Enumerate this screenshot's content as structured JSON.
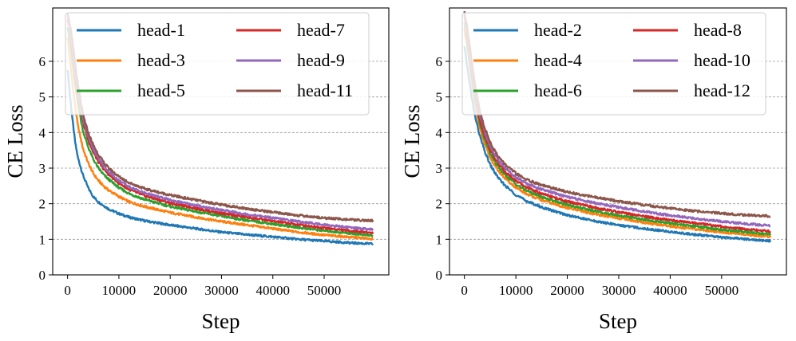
{
  "chart_data": [
    {
      "type": "line",
      "xlabel": "Step",
      "ylabel": "CE Loss",
      "xlim": [
        -2900,
        62600
      ],
      "ylim": [
        0,
        7.5
      ],
      "xticks": [
        0,
        10000,
        20000,
        30000,
        40000,
        50000
      ],
      "yticks": [
        0,
        1,
        2,
        3,
        4,
        5,
        6
      ],
      "grid": "horizontal dashed",
      "legend": "top, 2 columns",
      "x": [
        0,
        500,
        1000,
        1500,
        2000,
        3000,
        4000,
        5000,
        6000,
        7000,
        8000,
        10000,
        12000,
        15000,
        20000,
        25000,
        30000,
        35000,
        40000,
        45000,
        50000,
        55000,
        59500
      ],
      "series": [
        {
          "name": "head-1",
          "color": "#1f77b4",
          "values": [
            5.8,
            5.0,
            4.3,
            3.7,
            3.3,
            2.8,
            2.45,
            2.2,
            2.05,
            1.95,
            1.85,
            1.72,
            1.62,
            1.52,
            1.4,
            1.3,
            1.2,
            1.13,
            1.07,
            1.0,
            0.95,
            0.9,
            0.87
          ]
        },
        {
          "name": "head-3",
          "color": "#ff7f0e",
          "values": [
            6.7,
            6.0,
            5.3,
            4.7,
            4.2,
            3.55,
            3.15,
            2.85,
            2.65,
            2.5,
            2.38,
            2.2,
            2.05,
            1.92,
            1.75,
            1.62,
            1.5,
            1.4,
            1.3,
            1.2,
            1.12,
            1.06,
            1.01
          ]
        },
        {
          "name": "head-5",
          "color": "#2ca02c",
          "values": [
            7.0,
            6.5,
            5.9,
            5.3,
            4.8,
            4.05,
            3.6,
            3.25,
            3.0,
            2.82,
            2.68,
            2.45,
            2.28,
            2.12,
            1.92,
            1.78,
            1.65,
            1.53,
            1.43,
            1.33,
            1.24,
            1.17,
            1.1
          ]
        },
        {
          "name": "head-7",
          "color": "#d62728",
          "values": [
            7.2,
            6.8,
            6.2,
            5.6,
            5.1,
            4.3,
            3.8,
            3.45,
            3.18,
            2.98,
            2.82,
            2.58,
            2.4,
            2.22,
            2.02,
            1.87,
            1.73,
            1.62,
            1.51,
            1.41,
            1.32,
            1.24,
            1.18
          ]
        },
        {
          "name": "head-9",
          "color": "#9467bd",
          "values": [
            7.3,
            6.9,
            6.35,
            5.75,
            5.2,
            4.4,
            3.9,
            3.55,
            3.28,
            3.07,
            2.9,
            2.65,
            2.47,
            2.3,
            2.1,
            1.95,
            1.82,
            1.7,
            1.6,
            1.5,
            1.41,
            1.33,
            1.27
          ]
        },
        {
          "name": "head-11",
          "color": "#8c564b",
          "values": [
            7.4,
            7.0,
            6.5,
            5.9,
            5.35,
            4.5,
            4.0,
            3.65,
            3.38,
            3.17,
            3.0,
            2.76,
            2.59,
            2.42,
            2.24,
            2.1,
            1.97,
            1.86,
            1.76,
            1.67,
            1.6,
            1.55,
            1.52
          ]
        }
      ]
    },
    {
      "type": "line",
      "xlabel": "Step",
      "ylabel": "CE Loss",
      "xlim": [
        -2900,
        62600
      ],
      "ylim": [
        0,
        7.5
      ],
      "xticks": [
        0,
        10000,
        20000,
        30000,
        40000,
        50000
      ],
      "yticks": [
        0,
        1,
        2,
        3,
        4,
        5,
        6
      ],
      "grid": "horizontal dashed",
      "legend": "top, 2 columns",
      "x": [
        0,
        500,
        1000,
        1500,
        2000,
        3000,
        4000,
        5000,
        6000,
        7000,
        8000,
        10000,
        12000,
        15000,
        20000,
        25000,
        30000,
        35000,
        40000,
        45000,
        50000,
        55000,
        59500
      ],
      "series": [
        {
          "name": "head-2",
          "color": "#1f77b4",
          "values": [
            6.4,
            5.9,
            5.4,
            4.9,
            4.5,
            3.9,
            3.45,
            3.1,
            2.85,
            2.65,
            2.5,
            2.25,
            2.08,
            1.9,
            1.68,
            1.52,
            1.4,
            1.3,
            1.21,
            1.13,
            1.06,
            1.0,
            0.95
          ]
        },
        {
          "name": "head-4",
          "color": "#ff7f0e",
          "values": [
            6.9,
            6.4,
            5.9,
            5.3,
            4.85,
            4.1,
            3.65,
            3.3,
            3.05,
            2.85,
            2.7,
            2.45,
            2.28,
            2.1,
            1.88,
            1.72,
            1.59,
            1.47,
            1.37,
            1.28,
            1.2,
            1.13,
            1.07
          ]
        },
        {
          "name": "head-6",
          "color": "#2ca02c",
          "values": [
            7.1,
            6.6,
            6.05,
            5.5,
            5.0,
            4.25,
            3.78,
            3.42,
            3.16,
            2.96,
            2.8,
            2.55,
            2.37,
            2.19,
            1.97,
            1.8,
            1.67,
            1.55,
            1.45,
            1.36,
            1.27,
            1.2,
            1.14
          ]
        },
        {
          "name": "head-8",
          "color": "#d62728",
          "values": [
            7.25,
            6.8,
            6.25,
            5.65,
            5.15,
            4.35,
            3.88,
            3.52,
            3.25,
            3.05,
            2.89,
            2.64,
            2.46,
            2.28,
            2.06,
            1.9,
            1.76,
            1.64,
            1.54,
            1.45,
            1.36,
            1.28,
            1.22
          ]
        },
        {
          "name": "head-10",
          "color": "#9467bd",
          "values": [
            7.3,
            6.9,
            6.4,
            5.8,
            5.3,
            4.5,
            4.0,
            3.63,
            3.36,
            3.15,
            2.99,
            2.75,
            2.57,
            2.4,
            2.19,
            2.03,
            1.9,
            1.78,
            1.67,
            1.58,
            1.5,
            1.43,
            1.38
          ]
        },
        {
          "name": "head-12",
          "color": "#8c564b",
          "values": [
            7.4,
            7.0,
            6.5,
            5.9,
            5.4,
            4.6,
            4.1,
            3.73,
            3.46,
            3.25,
            3.09,
            2.85,
            2.68,
            2.52,
            2.33,
            2.19,
            2.07,
            1.96,
            1.87,
            1.79,
            1.73,
            1.68,
            1.65
          ]
        }
      ]
    }
  ]
}
